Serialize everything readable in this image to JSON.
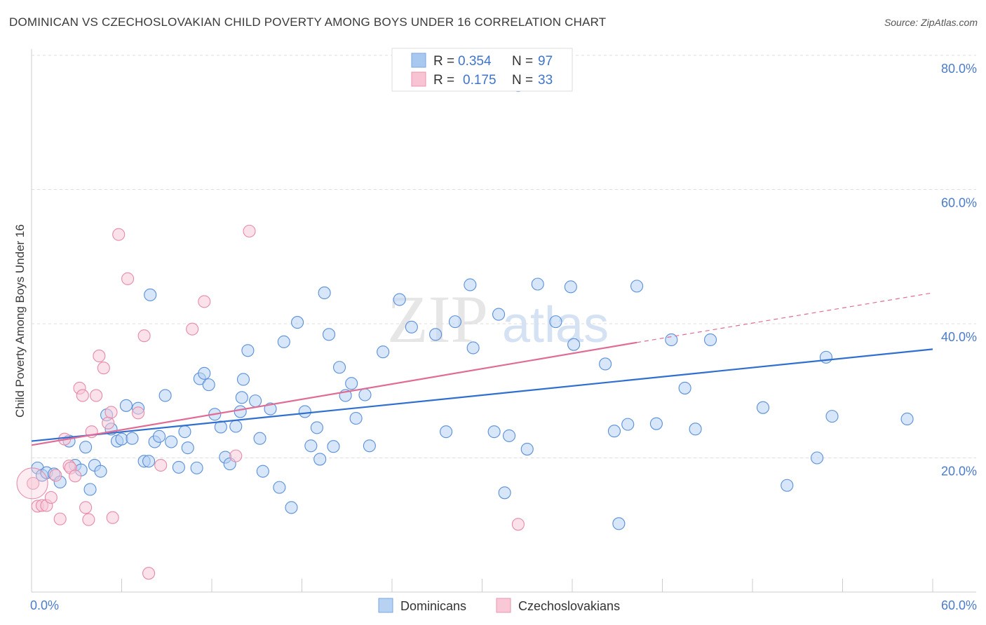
{
  "title": "DOMINICAN VS CZECHOSLOVAKIAN CHILD POVERTY AMONG BOYS UNDER 16 CORRELATION CHART",
  "source": "Source: ZipAtlas.com",
  "watermark": {
    "zip": "ZIP",
    "atlas": "atlas"
  },
  "legend": {
    "r_label": "R =",
    "n_label": "N =",
    "rows": [
      {
        "r": "0.354",
        "n": "97",
        "color": "#a9c8f0",
        "border": "#7aa6e0"
      },
      {
        "r": "0.175",
        "n": "33",
        "color": "#f8c3d3",
        "border": "#eb94b0"
      }
    ]
  },
  "bottom_legend": [
    {
      "label": "Dominicans",
      "color": "#b7d1f3",
      "border": "#7aa6e0"
    },
    {
      "label": "Czechoslovakians",
      "color": "#f8c8d7",
      "border": "#eb94b0"
    }
  ],
  "chart_data": {
    "type": "scatter",
    "ylabel": "Child Poverty Among Boys Under 16",
    "xlim": [
      0,
      60
    ],
    "ylim": [
      0,
      80
    ],
    "y_tick_labels": [
      "80.0%",
      "60.0%",
      "40.0%",
      "20.0%"
    ],
    "y_ticks": [
      80,
      60,
      40,
      20
    ],
    "x_tick_labels": [
      "0.0%",
      "60.0%"
    ],
    "grid": true,
    "series": [
      {
        "name": "Dominicans",
        "color": "#5a8fd8",
        "fill": "#b7d1f3",
        "trend": {
          "x": [
            0,
            60
          ],
          "y": [
            22.5,
            36.2
          ],
          "color": "#2f6fd0"
        },
        "points": [
          [
            0.4,
            18.5
          ],
          [
            0.7,
            17.4
          ],
          [
            1.0,
            17.8
          ],
          [
            1.5,
            17.6
          ],
          [
            1.9,
            16.4
          ],
          [
            2.5,
            22.5
          ],
          [
            2.9,
            18.9
          ],
          [
            3.3,
            18.2
          ],
          [
            3.6,
            21.6
          ],
          [
            3.9,
            15.3
          ],
          [
            4.2,
            18.9
          ],
          [
            4.6,
            18.0
          ],
          [
            5.0,
            26.4
          ],
          [
            5.3,
            24.3
          ],
          [
            5.7,
            22.5
          ],
          [
            6.0,
            22.8
          ],
          [
            6.3,
            27.8
          ],
          [
            6.7,
            22.9
          ],
          [
            7.1,
            27.4
          ],
          [
            7.5,
            19.5
          ],
          [
            7.8,
            19.5
          ],
          [
            7.9,
            44.3
          ],
          [
            8.2,
            22.4
          ],
          [
            8.5,
            23.2
          ],
          [
            8.9,
            29.3
          ],
          [
            9.3,
            22.4
          ],
          [
            9.8,
            18.6
          ],
          [
            10.2,
            23.9
          ],
          [
            10.4,
            21.5
          ],
          [
            11.0,
            18.5
          ],
          [
            11.2,
            31.8
          ],
          [
            11.5,
            32.6
          ],
          [
            11.8,
            30.9
          ],
          [
            12.2,
            26.5
          ],
          [
            12.6,
            24.6
          ],
          [
            12.9,
            20.1
          ],
          [
            13.2,
            19.1
          ],
          [
            13.6,
            24.7
          ],
          [
            13.9,
            26.9
          ],
          [
            14.1,
            31.7
          ],
          [
            14.4,
            36.0
          ],
          [
            14.9,
            28.5
          ],
          [
            15.2,
            22.9
          ],
          [
            15.4,
            18.0
          ],
          [
            15.9,
            27.3
          ],
          [
            16.5,
            15.6
          ],
          [
            16.8,
            37.3
          ],
          [
            17.3,
            12.6
          ],
          [
            17.7,
            40.2
          ],
          [
            18.2,
            26.9
          ],
          [
            18.6,
            21.8
          ],
          [
            19.0,
            24.5
          ],
          [
            19.2,
            19.8
          ],
          [
            19.5,
            44.6
          ],
          [
            19.8,
            38.4
          ],
          [
            20.5,
            33.5
          ],
          [
            20.9,
            29.3
          ],
          [
            21.3,
            31.1
          ],
          [
            21.6,
            25.9
          ],
          [
            22.2,
            29.4
          ],
          [
            22.5,
            21.8
          ],
          [
            23.4,
            35.8
          ],
          [
            24.5,
            43.6
          ],
          [
            25.3,
            39.5
          ],
          [
            26.9,
            38.4
          ],
          [
            27.6,
            23.9
          ],
          [
            28.2,
            40.3
          ],
          [
            29.2,
            45.8
          ],
          [
            29.4,
            36.4
          ],
          [
            30.8,
            23.9
          ],
          [
            31.1,
            41.4
          ],
          [
            31.5,
            14.8
          ],
          [
            31.8,
            23.3
          ],
          [
            32.4,
            75.5
          ],
          [
            33.0,
            21.3
          ],
          [
            33.7,
            45.9
          ],
          [
            34.9,
            40.3
          ],
          [
            35.9,
            45.5
          ],
          [
            36.1,
            36.9
          ],
          [
            38.2,
            34.0
          ],
          [
            38.8,
            24.0
          ],
          [
            39.1,
            10.2
          ],
          [
            39.7,
            25.0
          ],
          [
            40.3,
            45.6
          ],
          [
            42.6,
            37.6
          ],
          [
            43.5,
            30.4
          ],
          [
            44.2,
            24.3
          ],
          [
            45.2,
            37.6
          ],
          [
            48.7,
            27.5
          ],
          [
            50.3,
            15.9
          ],
          [
            52.3,
            20.0
          ],
          [
            52.9,
            35.0
          ],
          [
            53.3,
            26.2
          ],
          [
            58.3,
            25.8
          ],
          [
            41.6,
            25.1
          ],
          [
            20.1,
            21.7
          ],
          [
            14.0,
            29.0
          ]
        ]
      },
      {
        "name": "Czechoslovakians",
        "color": "#e68aa8",
        "fill": "#f8c8d7",
        "trend": {
          "x": [
            0,
            40.3
          ],
          "y": [
            21.9,
            37.2
          ],
          "color": "#e06c96",
          "dashed": {
            "x": [
              40.3,
              60
            ],
            "y": [
              37.2,
              44.6
            ]
          }
        },
        "points": [
          [
            0.1,
            16.2
          ],
          [
            0.4,
            12.8
          ],
          [
            0.7,
            12.9
          ],
          [
            1.0,
            12.9
          ],
          [
            1.3,
            14.1
          ],
          [
            1.6,
            17.4
          ],
          [
            1.9,
            10.9
          ],
          [
            2.2,
            22.8
          ],
          [
            2.5,
            18.8
          ],
          [
            2.6,
            18.5
          ],
          [
            2.9,
            17.3
          ],
          [
            3.2,
            30.4
          ],
          [
            3.4,
            29.3
          ],
          [
            3.6,
            12.6
          ],
          [
            3.8,
            10.8
          ],
          [
            4.0,
            23.9
          ],
          [
            4.3,
            29.3
          ],
          [
            4.5,
            35.2
          ],
          [
            4.8,
            33.4
          ],
          [
            5.1,
            25.2
          ],
          [
            5.3,
            26.8
          ],
          [
            5.4,
            11.1
          ],
          [
            5.8,
            53.3
          ],
          [
            6.4,
            46.7
          ],
          [
            7.1,
            26.7
          ],
          [
            7.5,
            38.2
          ],
          [
            7.8,
            2.8
          ],
          [
            8.6,
            18.9
          ],
          [
            10.7,
            39.2
          ],
          [
            11.5,
            43.3
          ],
          [
            13.6,
            20.3
          ],
          [
            14.5,
            53.8
          ],
          [
            32.4,
            10.1
          ]
        ]
      }
    ]
  }
}
